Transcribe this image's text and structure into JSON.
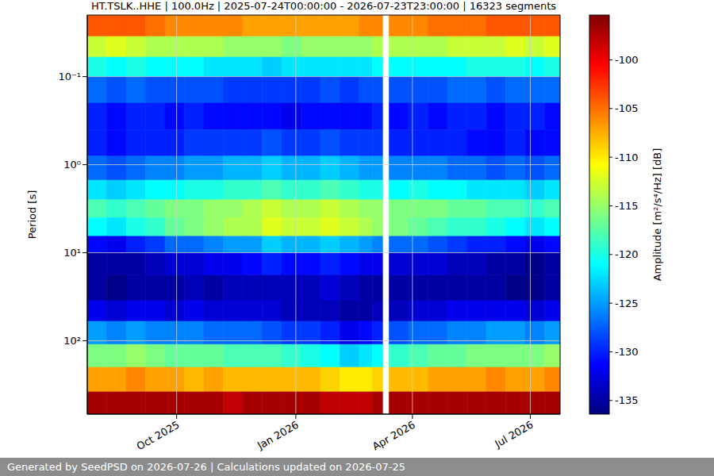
{
  "chart_data": {
    "type": "heatmap",
    "title": "HT.TSLK..HHE | 100.0Hz | 2025-07-24T00:00:00 - 2026-07-23T23:00:00 | 16323 segments",
    "y_label": "Period [s]",
    "footer": "Generated by SeedPSD on 2026-07-26 | Calculations updated on 2026-07-25",
    "colorbar_label": "Amplitude [m²/s⁴/Hz] [dB]",
    "color_range": [
      -136.4,
      -95.4
    ],
    "color_ticks": [
      -100,
      -105,
      -110,
      -115,
      -120,
      -125,
      -130,
      -135
    ],
    "log": "y",
    "grid": true,
    "xlim": [
      "2025-07-24",
      "2026-07-24"
    ],
    "xticks": [
      {
        "value": "2025-10-01",
        "label": "Oct 2025"
      },
      {
        "value": "2026-01-01",
        "label": "Jan 2026"
      },
      {
        "value": "2026-04-01",
        "label": "Apr 2026"
      },
      {
        "value": "2026-07-01",
        "label": "Jul 2026"
      }
    ],
    "ylim": [
      0.02,
      680
    ],
    "yticks": [
      {
        "value": 0.1,
        "label": "10⁻¹"
      },
      {
        "value": 1,
        "label": "10⁰"
      },
      {
        "value": 10,
        "label": "10¹"
      },
      {
        "value": 100,
        "label": "10²"
      }
    ],
    "x_edges": [
      "2025-07-24",
      "2025-08-08",
      "2025-08-23",
      "2025-09-07",
      "2025-09-22",
      "2025-10-07",
      "2025-10-22",
      "2025-11-06",
      "2025-11-21",
      "2025-12-06",
      "2025-12-21",
      "2026-01-05",
      "2026-01-20",
      "2026-02-04",
      "2026-02-19",
      "2026-03-01",
      "2026-03-09",
      "2026-03-14",
      "2026-03-29",
      "2026-04-13",
      "2026-04-28",
      "2026-05-13",
      "2026-05-28",
      "2026-06-12",
      "2026-06-27",
      "2026-07-12",
      "2026-07-24"
    ],
    "y_edges": [
      0.02,
      0.035,
      0.06,
      0.1,
      0.2,
      0.4,
      0.8,
      1.5,
      2.5,
      4,
      6.5,
      10,
      18,
      35,
      60,
      110,
      200,
      380,
      680
    ],
    "values": [
      [
        -104,
        -104,
        -104,
        -105,
        -106,
        -106,
        -106,
        -106,
        -107,
        -107,
        -107,
        -107,
        -107,
        -107,
        -106,
        -106,
        null,
        -106,
        -106,
        -105,
        -105,
        -105,
        -104,
        -104,
        -104,
        -104
      ],
      [
        -113,
        -112,
        -113,
        -114,
        -114,
        -114,
        -114,
        -115,
        -115,
        -115,
        -116,
        -115,
        -115,
        -115,
        -115,
        -114,
        null,
        -114,
        -114,
        -114,
        -113,
        -113,
        -113,
        -112,
        -113,
        -112
      ],
      [
        -120,
        -121,
        -120,
        -121,
        -121,
        -121,
        -122,
        -122,
        -122,
        -123,
        -122,
        -122,
        -122,
        -122,
        -122,
        -121,
        null,
        -121,
        -121,
        -121,
        -121,
        -120,
        -120,
        -120,
        -121,
        -120
      ],
      [
        -127,
        -128,
        -127,
        -128,
        -128,
        -128,
        -128,
        -129,
        -129,
        -129,
        -129,
        -129,
        -128,
        -129,
        -128,
        -128,
        null,
        -128,
        -128,
        -128,
        -127,
        -127,
        -128,
        -127,
        -127,
        -127
      ],
      [
        -130,
        -131,
        -130,
        -130,
        -131,
        -130,
        -131,
        -131,
        -131,
        -131,
        -132,
        -131,
        -131,
        -131,
        -131,
        -130,
        null,
        -131,
        -130,
        -131,
        -130,
        -130,
        -131,
        -130,
        -130,
        -131
      ],
      [
        -130,
        -131,
        -130,
        -130,
        -130,
        -129,
        -129,
        -129,
        -129,
        -128,
        -129,
        -129,
        -128,
        -129,
        -129,
        -129,
        null,
        -130,
        -130,
        -130,
        -130,
        -131,
        -131,
        -130,
        -131,
        -131
      ],
      [
        -127,
        -128,
        -127,
        -126,
        -126,
        -125,
        -125,
        -124,
        -124,
        -123,
        -124,
        -124,
        -123,
        -124,
        -125,
        -125,
        null,
        -126,
        -126,
        -126,
        -127,
        -127,
        -128,
        -127,
        -128,
        -127
      ],
      [
        -122,
        -123,
        -122,
        -121,
        -121,
        -120,
        -120,
        -119,
        -119,
        -118,
        -119,
        -119,
        -118,
        -119,
        -120,
        -120,
        null,
        -121,
        -120,
        -121,
        -121,
        -122,
        -122,
        -122,
        -123,
        -122
      ],
      [
        -118,
        -119,
        -118,
        -117,
        -116,
        -116,
        -115,
        -115,
        -114,
        -113,
        -114,
        -114,
        -113,
        -114,
        -115,
        -115,
        null,
        -116,
        -116,
        -116,
        -117,
        -117,
        -118,
        -118,
        -119,
        -118
      ],
      [
        -121,
        -122,
        -120,
        -119,
        -117,
        -116,
        -115,
        -114,
        -114,
        -112,
        -113,
        -113,
        -112,
        -113,
        -114,
        -115,
        null,
        -116,
        -117,
        -118,
        -119,
        -119,
        -120,
        -121,
        -122,
        -121
      ],
      [
        -131,
        -132,
        -130,
        -129,
        -127,
        -127,
        -126,
        -125,
        -125,
        -123,
        -124,
        -124,
        -123,
        -124,
        -125,
        -126,
        null,
        -127,
        -127,
        -128,
        -129,
        -130,
        -130,
        -131,
        -132,
        -131
      ],
      [
        -135,
        -135,
        -135,
        -134,
        -133,
        -133,
        -132,
        -132,
        -131,
        -130,
        -131,
        -131,
        -130,
        -131,
        -132,
        -132,
        null,
        -133,
        -133,
        -133,
        -134,
        -134,
        -135,
        -135,
        -136,
        -135
      ],
      [
        -135,
        -136,
        -135,
        -135,
        -135,
        -134,
        -135,
        -134,
        -134,
        -134,
        -134,
        -134,
        -133,
        -134,
        -135,
        -135,
        null,
        -135,
        -135,
        -135,
        -135,
        -135,
        -135,
        -136,
        -136,
        -135
      ],
      [
        -132,
        -133,
        -132,
        -132,
        -133,
        -132,
        -133,
        -133,
        -133,
        -133,
        -134,
        -134,
        -134,
        -135,
        -135,
        -134,
        null,
        -134,
        -133,
        -133,
        -132,
        -132,
        -132,
        -132,
        -133,
        -132
      ],
      [
        -125,
        -126,
        -125,
        -126,
        -126,
        -126,
        -127,
        -127,
        -127,
        -128,
        -129,
        -129,
        -130,
        -132,
        -131,
        -130,
        null,
        -128,
        -127,
        -127,
        -126,
        -126,
        -125,
        -125,
        -126,
        -125
      ],
      [
        -116,
        -116,
        -115,
        -116,
        -117,
        -117,
        -117,
        -118,
        -118,
        -118,
        -119,
        -120,
        -121,
        -123,
        -122,
        -121,
        null,
        -119,
        -118,
        -117,
        -117,
        -116,
        -116,
        -116,
        -116,
        -115
      ],
      [
        -107,
        -107,
        -106,
        -107,
        -107,
        -108,
        -107,
        -108,
        -108,
        -108,
        -108,
        -108,
        -109,
        -110,
        -110,
        -109,
        null,
        -108,
        -108,
        -107,
        -107,
        -107,
        -106,
        -107,
        -107,
        -106
      ],
      [
        -97,
        -97,
        -97,
        -97,
        -97,
        -97,
        -97,
        -98,
        -97,
        -97,
        -97,
        -97,
        -98,
        -98,
        -98,
        -97,
        null,
        -97,
        -97,
        -97,
        -97,
        -97,
        -97,
        -97,
        -97,
        -97
      ]
    ]
  }
}
